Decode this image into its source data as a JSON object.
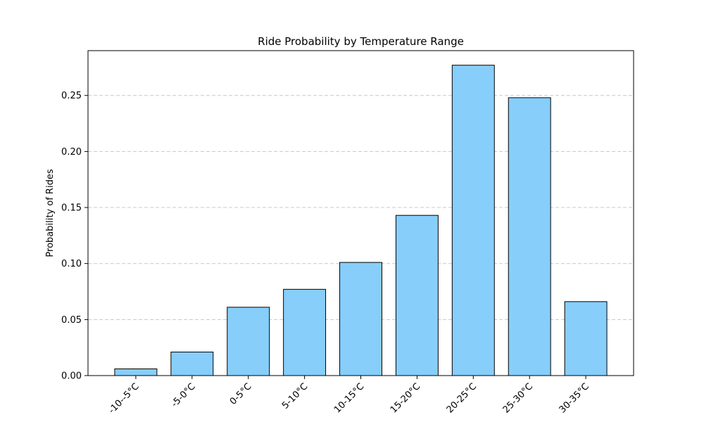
{
  "chart_data": {
    "type": "bar",
    "title": "Ride Probability by Temperature Range",
    "xlabel": "",
    "ylabel": "Probability of Rides",
    "categories": [
      "-10--5°C",
      "-5-0°C",
      "0-5°C",
      "5-10°C",
      "10-15°C",
      "15-20°C",
      "20-25°C",
      "25-30°C",
      "30-35°C"
    ],
    "values": [
      0.006,
      0.021,
      0.061,
      0.077,
      0.101,
      0.143,
      0.277,
      0.248,
      0.066
    ],
    "ylim": [
      0,
      0.29
    ],
    "yticks": [
      0.0,
      0.05,
      0.1,
      0.15,
      0.2,
      0.25
    ],
    "ytick_labels": [
      "0.00",
      "0.05",
      "0.10",
      "0.15",
      "0.20",
      "0.25"
    ],
    "grid": "y-dashed",
    "legend": "none",
    "bar_color": "#87cefa",
    "bar_edge_color": "#000000",
    "grid_color": "#c8c8c8"
  }
}
